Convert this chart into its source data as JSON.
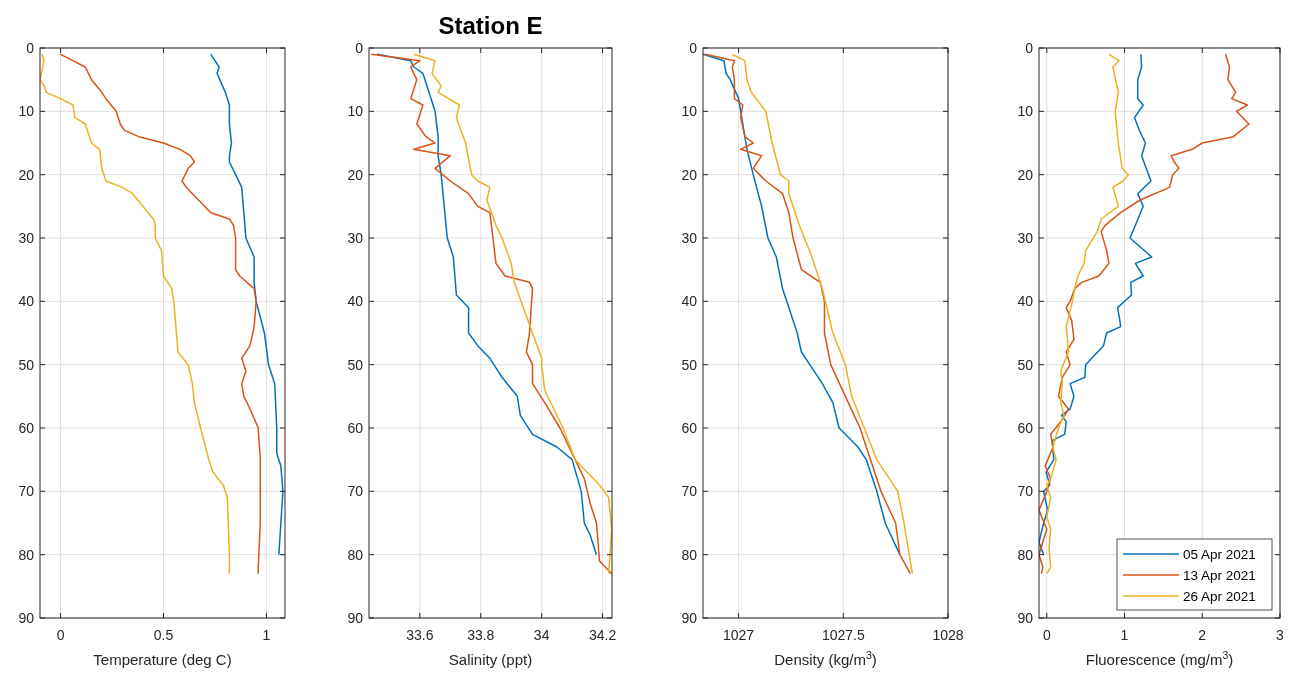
{
  "chart_data": [
    {
      "type": "line",
      "xlabel": "Temperature (deg C)",
      "xlim": [
        -0.1,
        1.09
      ],
      "ylim": [
        90,
        0
      ],
      "xticks": [
        0,
        0.5,
        1
      ],
      "yticks": [
        0,
        10,
        20,
        30,
        40,
        50,
        60,
        70,
        80,
        90
      ],
      "grid": true,
      "legend": false,
      "series": [
        {
          "color": "#0072bd",
          "x": [
            0.73,
            0.77,
            0.76,
            0.8,
            0.82,
            0.82,
            0.83,
            0.82,
            0.82,
            0.85,
            0.88,
            0.89,
            0.9,
            0.94,
            0.94,
            0.95,
            0.99,
            1.01,
            1.04,
            1.05,
            1.05,
            1.07,
            1.08,
            1.07,
            1.06
          ],
          "values": [
            1,
            3,
            4,
            7,
            9,
            12,
            15,
            17,
            18,
            20,
            22,
            26,
            30,
            33,
            37,
            40,
            45,
            50,
            53,
            60,
            64,
            66,
            70,
            75,
            80
          ]
        },
        {
          "color": "#d95319",
          "x": [
            0.0,
            0.06,
            0.12,
            0.15,
            0.2,
            0.22,
            0.27,
            0.29,
            0.31,
            0.38,
            0.5,
            0.58,
            0.63,
            0.65,
            0.62,
            0.59,
            0.61,
            0.67,
            0.73,
            0.82,
            0.84,
            0.85,
            0.85,
            0.87,
            0.94,
            0.95,
            0.94,
            0.92,
            0.88,
            0.9,
            0.88,
            0.89,
            0.92,
            0.96,
            0.97,
            0.97,
            0.96,
            0.96
          ],
          "values": [
            1,
            2,
            3,
            5,
            7,
            8,
            10,
            12,
            13,
            14,
            15,
            16,
            17,
            18,
            19,
            21,
            22,
            24,
            26,
            27,
            28,
            30,
            35,
            36,
            38,
            40,
            44,
            47,
            49,
            51,
            53,
            55,
            57,
            60,
            65,
            75,
            82,
            83
          ]
        },
        {
          "color": "#edb120",
          "x": [
            -0.09,
            -0.08,
            -0.1,
            -0.08,
            -0.07,
            0.0,
            0.06,
            0.07,
            0.12,
            0.15,
            0.19,
            0.2,
            0.22,
            0.3,
            0.35,
            0.4,
            0.45,
            0.46,
            0.46,
            0.49,
            0.5,
            0.54,
            0.55,
            0.57,
            0.62,
            0.64,
            0.65,
            0.68,
            0.72,
            0.74,
            0.79,
            0.81,
            0.82,
            0.82
          ],
          "values": [
            1,
            2,
            5,
            6,
            7,
            8,
            9,
            11,
            12,
            15,
            16,
            19,
            21,
            22,
            23,
            25,
            27,
            28,
            30,
            32,
            36,
            38,
            40,
            48,
            50,
            53,
            56,
            60,
            65,
            67,
            69,
            71,
            80,
            83
          ]
        }
      ]
    },
    {
      "type": "line",
      "title": "Station E",
      "xlabel": "Salinity (ppt)",
      "xlim": [
        33.433,
        34.231
      ],
      "ylim": [
        90,
        0
      ],
      "xticks": [
        33.6,
        33.8,
        34,
        34.2
      ],
      "yticks": [
        0,
        10,
        20,
        30,
        40,
        50,
        60,
        70,
        80,
        90
      ],
      "grid": true,
      "legend": false,
      "series": [
        {
          "color": "#0072bd",
          "x": [
            33.46,
            33.57,
            33.58,
            33.61,
            33.63,
            33.65,
            33.66,
            33.66,
            33.67,
            33.68,
            33.69,
            33.71,
            33.72,
            33.76,
            33.76,
            33.79,
            33.83,
            33.87,
            33.92,
            33.93,
            33.97,
            34.05,
            34.1,
            34.13,
            34.14,
            34.16,
            34.18
          ],
          "values": [
            1,
            2,
            3,
            4,
            7,
            10,
            14,
            17,
            20,
            25,
            30,
            33,
            39,
            41,
            45,
            47,
            49,
            52,
            55,
            58,
            61,
            63,
            65,
            70,
            75,
            77,
            80
          ]
        },
        {
          "color": "#d95319",
          "x": [
            33.44,
            33.6,
            33.57,
            33.59,
            33.57,
            33.61,
            33.59,
            33.62,
            33.65,
            33.58,
            33.7,
            33.65,
            33.7,
            33.76,
            33.79,
            33.83,
            33.84,
            33.85,
            33.88,
            33.96,
            33.97,
            33.96,
            33.95,
            33.97,
            33.97,
            34.01,
            34.06,
            34.11,
            34.14,
            34.16,
            34.18,
            34.19,
            34.23
          ],
          "values": [
            1,
            2,
            3,
            5,
            8,
            9,
            12,
            14,
            15,
            16,
            17,
            19,
            21,
            23,
            25,
            26,
            30,
            34,
            36,
            37,
            38,
            45,
            48,
            50,
            53,
            56,
            60,
            65,
            68,
            72,
            75,
            81,
            83
          ]
        },
        {
          "color": "#edb120",
          "x": [
            33.58,
            33.65,
            33.64,
            33.67,
            33.66,
            33.73,
            33.72,
            33.75,
            33.77,
            33.79,
            33.83,
            33.82,
            33.85,
            33.87,
            33.9,
            33.91,
            33.94,
            33.97,
            34.0,
            34.0,
            34.01,
            34.04,
            34.07,
            34.11,
            34.19,
            34.22,
            34.23,
            34.22
          ],
          "values": [
            1,
            2,
            4,
            6,
            7,
            9,
            11,
            15,
            20,
            21,
            22,
            24,
            28,
            30,
            34,
            37,
            41,
            45,
            49,
            50,
            54,
            57,
            60,
            65,
            69,
            71,
            76,
            83
          ]
        }
      ]
    },
    {
      "type": "line",
      "xlabel": "Density (kg/m$^{3}$)",
      "xlim": [
        1026.83,
        1028
      ],
      "ylim": [
        90,
        0
      ],
      "xticks": [
        1027,
        1027.5,
        1028
      ],
      "yticks": [
        0,
        10,
        20,
        30,
        40,
        50,
        60,
        70,
        80,
        90
      ],
      "grid": true,
      "legend": false,
      "series": [
        {
          "color": "#0072bd",
          "x": [
            1026.83,
            1026.93,
            1026.94,
            1026.96,
            1027.0,
            1027.02,
            1027.04,
            1027.07,
            1027.11,
            1027.14,
            1027.18,
            1027.21,
            1027.23,
            1027.28,
            1027.3,
            1027.34,
            1027.4,
            1027.45,
            1027.48,
            1027.51,
            1027.57,
            1027.61,
            1027.66,
            1027.7,
            1027.77
          ],
          "values": [
            1,
            2,
            4,
            5,
            8,
            12,
            16,
            20,
            25,
            30,
            33,
            38,
            40,
            45,
            48,
            50,
            53,
            56,
            60,
            61,
            63,
            65,
            70,
            75,
            80
          ]
        },
        {
          "color": "#d95319",
          "x": [
            1026.84,
            1026.98,
            1026.97,
            1026.98,
            1026.98,
            1027.02,
            1027.01,
            1027.03,
            1027.07,
            1027.01,
            1027.11,
            1027.07,
            1027.13,
            1027.21,
            1027.24,
            1027.26,
            1027.3,
            1027.39,
            1027.41,
            1027.41,
            1027.44,
            1027.51,
            1027.58,
            1027.63,
            1027.68,
            1027.75,
            1027.77,
            1027.82
          ],
          "values": [
            1,
            2,
            3,
            5,
            8,
            9,
            11,
            14,
            15,
            16,
            17,
            19,
            21,
            23,
            26,
            30,
            35,
            37,
            40,
            45,
            50,
            55,
            60,
            65,
            70,
            75,
            80,
            83
          ]
        },
        {
          "color": "#edb120",
          "x": [
            1026.97,
            1027.03,
            1027.04,
            1027.06,
            1027.13,
            1027.16,
            1027.2,
            1027.24,
            1027.24,
            1027.29,
            1027.35,
            1027.4,
            1027.45,
            1027.51,
            1027.54,
            1027.6,
            1027.66,
            1027.76,
            1027.79,
            1027.83
          ],
          "values": [
            1,
            2,
            5,
            7,
            10,
            15,
            20,
            21,
            23,
            28,
            33,
            38,
            45,
            50,
            55,
            60,
            65,
            70,
            75,
            83
          ]
        }
      ]
    },
    {
      "type": "line",
      "xlabel": "Fluorescence (mg/m$^{3}$)",
      "xlim": [
        -0.1,
        3
      ],
      "ylim": [
        90,
        0
      ],
      "xticks": [
        0,
        1,
        2,
        3
      ],
      "yticks": [
        0,
        10,
        20,
        30,
        40,
        50,
        60,
        70,
        80,
        90
      ],
      "grid": true,
      "legend": "bottom right",
      "series": [
        {
          "name": "05 Apr 2021",
          "color": "#0072bd",
          "x": [
            1.21,
            1.22,
            1.17,
            1.17,
            1.24,
            1.13,
            1.19,
            1.27,
            1.22,
            1.34,
            1.17,
            1.24,
            1.14,
            1.07,
            1.35,
            1.14,
            1.24,
            1.08,
            1.09,
            0.91,
            0.94,
            0.95,
            0.77,
            0.73,
            0.5,
            0.49,
            0.3,
            0.35,
            0.3,
            0.19,
            0.25,
            0.23,
            0.07,
            0.09,
            -0.01,
            0.04,
            -0.04,
            0.01,
            -0.04,
            -0.1,
            -0.04
          ],
          "values": [
            1,
            3,
            5,
            8,
            9,
            11,
            13,
            15,
            17,
            21,
            23,
            25,
            28,
            30,
            33,
            34,
            36,
            37,
            39,
            41,
            43,
            44,
            45,
            47,
            50,
            52,
            53,
            55,
            57,
            58,
            59,
            61,
            62,
            65,
            67,
            69,
            70,
            73,
            75,
            78,
            80
          ]
        },
        {
          "name": "13 Apr 2021",
          "color": "#d95319",
          "x": [
            2.3,
            2.35,
            2.33,
            2.43,
            2.38,
            2.58,
            2.44,
            2.6,
            2.4,
            2.0,
            1.87,
            1.6,
            1.64,
            1.7,
            1.62,
            1.58,
            1.2,
            0.95,
            0.75,
            0.7,
            0.77,
            0.8,
            0.67,
            0.45,
            0.36,
            0.3,
            0.25,
            0.32,
            0.35,
            0.25,
            0.3,
            0.2,
            0.15,
            0.28,
            0.18,
            0.05,
            0.08,
            -0.02,
            0.05,
            0.0,
            -0.1,
            0.0,
            -0.05,
            -0.1,
            -0.05,
            -0.07
          ],
          "values": [
            1,
            3,
            5,
            7,
            8,
            9,
            10,
            12,
            14,
            15,
            16,
            17,
            18,
            19,
            20,
            22,
            24,
            26,
            28,
            29,
            32,
            34,
            36,
            37,
            38,
            40,
            41,
            43,
            46,
            48,
            50,
            52,
            55,
            57,
            59,
            61,
            63,
            66,
            68,
            70,
            73,
            76,
            78,
            80,
            82,
            83
          ]
        },
        {
          "name": "26 Apr 2021",
          "color": "#edb120",
          "x": [
            0.8,
            0.93,
            0.85,
            0.92,
            0.88,
            0.92,
            0.97,
            1.05,
            0.98,
            0.85,
            0.9,
            0.92,
            0.7,
            0.65,
            0.55,
            0.5,
            0.48,
            0.4,
            0.36,
            0.33,
            0.25,
            0.28,
            0.18,
            0.2,
            0.18,
            0.22,
            0.15,
            0.08,
            0.12,
            0.05,
            0.0,
            0.05,
            0.0,
            0.05,
            0.03,
            0.05,
            0.0
          ],
          "values": [
            1,
            2,
            3,
            7,
            10,
            15,
            19,
            20,
            21,
            22,
            24,
            25,
            27,
            29,
            31,
            32,
            34,
            36,
            38,
            40,
            44,
            48,
            51,
            53,
            56,
            58,
            60,
            63,
            65,
            68,
            69,
            71,
            74,
            76,
            79,
            82,
            83
          ]
        }
      ]
    }
  ]
}
